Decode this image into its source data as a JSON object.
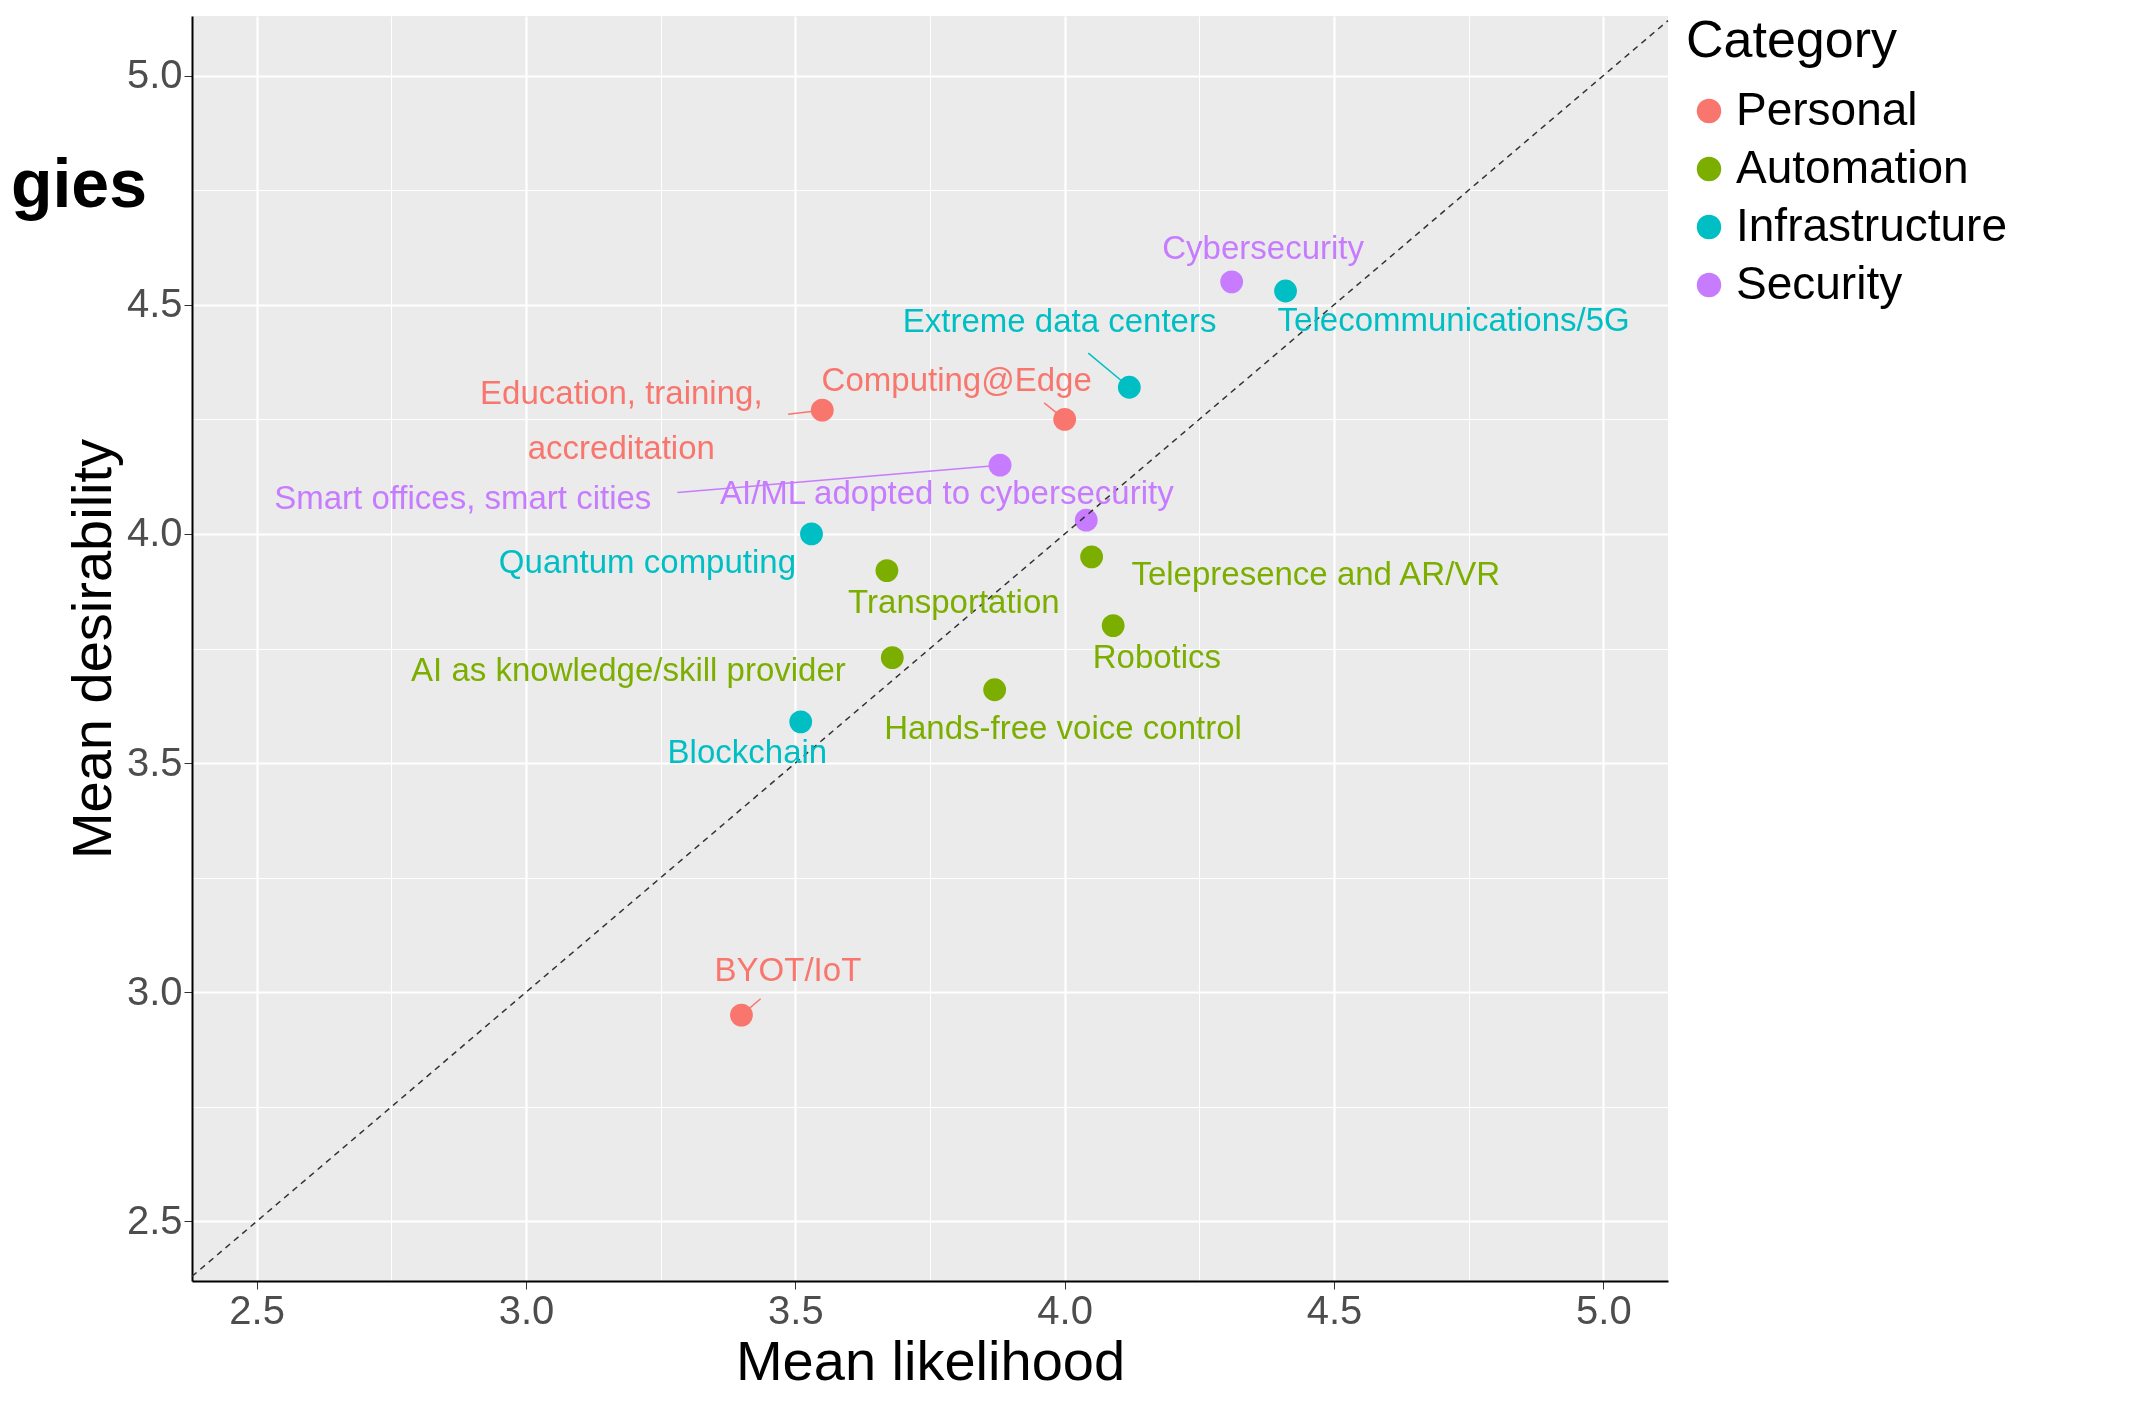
{
  "chart_data": {
    "type": "scatter",
    "xlabel": "Mean likelihood",
    "ylabel": "Mean desirability",
    "legend_title": "Category",
    "legend": "right",
    "grid": true,
    "marker": "circle",
    "xlim": [
      2.38,
      5.12
    ],
    "ylim": [
      2.37,
      5.13
    ],
    "xticks": [
      2.5,
      {
        "value": 2.75,
        "label": null
      },
      {
        "value": 3,
        "label": "3.0"
      },
      {
        "value": 3.25,
        "label": null
      },
      3.5,
      {
        "value": 3.75,
        "label": null
      },
      {
        "value": 4,
        "label": "4.0"
      },
      {
        "value": 4.25,
        "label": null
      },
      4.5,
      {
        "value": 4.75,
        "label": null
      },
      {
        "value": 5,
        "label": "5.0"
      }
    ],
    "yticks": [
      2.5,
      {
        "value": 2.75,
        "label": null
      },
      {
        "value": 3,
        "label": "3.0"
      },
      {
        "value": 3.25,
        "label": null
      },
      3.5,
      {
        "value": 3.75,
        "label": null
      },
      {
        "value": 4,
        "label": "4.0"
      },
      {
        "value": 4.25,
        "label": null
      },
      4.5,
      {
        "value": 4.75,
        "label": null
      },
      {
        "value": 5,
        "label": "5.0"
      }
    ],
    "series": [
      {
        "name": "Personal",
        "color": "#f8766d",
        "x": [
          3.55,
          4.0,
          3.4
        ],
        "values": [
          4.27,
          4.25,
          2.95
        ]
      },
      {
        "name": "Automation",
        "color": "#7cae00",
        "x": [
          3.67,
          4.05,
          4.09,
          3.68,
          3.87
        ],
        "values": [
          3.92,
          3.95,
          3.8,
          3.73,
          3.66
        ]
      },
      {
        "name": "Infrastructure",
        "color": "#00bfc4",
        "x": [
          4.41,
          4.12,
          3.53,
          3.51
        ],
        "values": [
          4.53,
          4.32,
          4.0,
          3.59
        ]
      },
      {
        "name": "Security",
        "color": "#c77cff",
        "x": [
          4.31,
          3.88,
          4.04
        ],
        "values": [
          4.55,
          4.15,
          4.03
        ]
      },
      {
        "type": "line",
        "color": "#333333",
        "line_style": "dashed",
        "marker": "none",
        "x": [
          2.38,
          5.12
        ],
        "values": [
          2.38,
          5.12
        ]
      }
    ],
    "annotations": [
      {
        "text": "Cybersecurity",
        "x": 4.31,
        "y": 4.55
      },
      {
        "text": "Telecommunications/5G",
        "x": 4.41,
        "y": 4.53
      },
      {
        "text": "Extreme data centers",
        "x": 4.12,
        "y": 4.32
      },
      {
        "text": "Education, training,\naccreditation",
        "x": 3.55,
        "y": 4.27
      },
      {
        "text": "Computing@Edge",
        "x": 4.0,
        "y": 4.25
      },
      {
        "text": "Smart offices, smart cities",
        "x": 3.88,
        "y": 4.15
      },
      {
        "text": "AI/ML adopted to cybersecurity",
        "x": 4.04,
        "y": 4.03
      },
      {
        "text": "Quantum computing",
        "x": 3.53,
        "y": 4.0
      },
      {
        "text": "Transportation",
        "x": 3.67,
        "y": 3.92
      },
      {
        "text": "Telepresence and AR/VR",
        "x": 4.05,
        "y": 3.95
      },
      {
        "text": "Robotics",
        "x": 4.09,
        "y": 3.8
      },
      {
        "text": "AI as knowledge/skill provider",
        "x": 3.68,
        "y": 3.73
      },
      {
        "text": "Hands-free voice control",
        "x": 3.87,
        "y": 3.66
      },
      {
        "text": "Blockchain",
        "x": 3.51,
        "y": 3.59
      },
      {
        "text": "BYOT/IoT",
        "x": 3.4,
        "y": 2.95
      },
      "gies"
    ]
  }
}
